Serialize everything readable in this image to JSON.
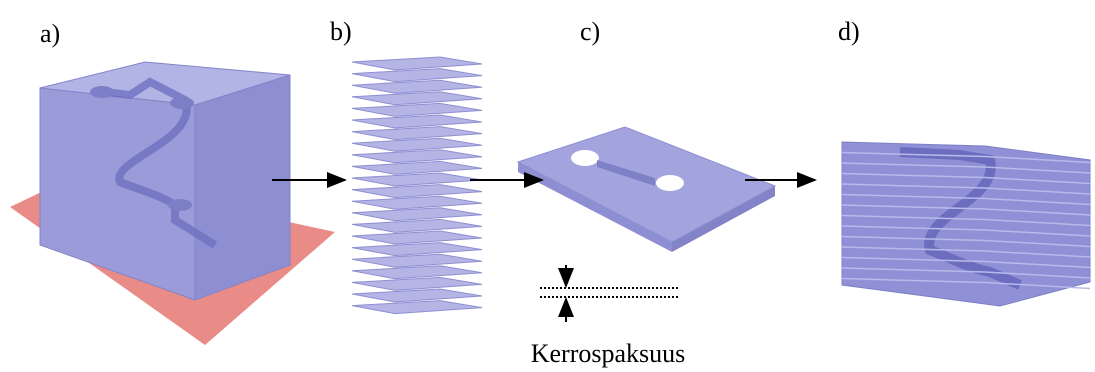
{
  "panel_labels": [
    "a)",
    "b)",
    "c)",
    "d)"
  ],
  "layer_thickness_label": "Kerrospaksuus"
}
